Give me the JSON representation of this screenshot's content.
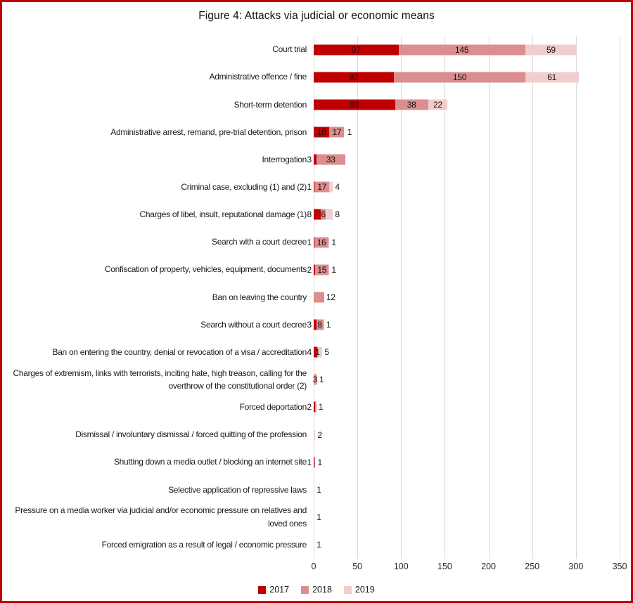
{
  "figure": {
    "title": "Figure 4: Attacks via judicial or economic means"
  },
  "chart_data": {
    "type": "bar",
    "orientation": "horizontal",
    "stacked": true,
    "title": "Figure 4: Attacks via judicial or economic means",
    "categories": [
      "Court trial",
      "Administrative offence / fine",
      "Short-term detention",
      "Administrative arrest, remand, pre-trial detention, prison",
      "Interrogation",
      "Criminal case, excluding (1) and (2)",
      "Charges of libel, insult, reputational damage (1)",
      "Search with a court decree",
      "Confiscation of property, vehicles, equipment, documents",
      "Ban on leaving the country",
      "Search without a court decree",
      "Ban on entering the country, denial or revocation of a visa / accreditation",
      "Charges of extremism, links with terrorists, inciting hate, high treason, calling for the overthrow of the constitutional order (2)",
      "Forced deportation",
      "Dismissal / involuntary dismissal / forced quitting of the profession",
      "Shutting down a media outlet / blocking an internet site",
      "Selective application of repressive laws",
      "Pressure on a media worker via judicial and/or economic pressure on relatives and loved ones",
      "Forced emigration as a result of legal / economic pressure"
    ],
    "series": [
      {
        "name": "2017",
        "color": "#C00000",
        "values": [
          97,
          92,
          93,
          18,
          3,
          1,
          8,
          1,
          2,
          0,
          3,
          4,
          0,
          2,
          0,
          1,
          0,
          0,
          0
        ]
      },
      {
        "name": "2018",
        "color": "#DC8E8E",
        "values": [
          145,
          150,
          38,
          17,
          33,
          17,
          6,
          16,
          15,
          12,
          8,
          1,
          3,
          1,
          0,
          1,
          0,
          0,
          0
        ]
      },
      {
        "name": "2019",
        "color": "#F2CDCD",
        "values": [
          59,
          61,
          22,
          1,
          0,
          4,
          8,
          1,
          1,
          0,
          1,
          5,
          1,
          0,
          2,
          0,
          1,
          1,
          1
        ]
      }
    ],
    "xlim": [
      0,
      350
    ],
    "x_ticks": [
      0,
      50,
      100,
      150,
      200,
      250,
      300,
      350
    ],
    "grid": "vertical",
    "legend_position": "bottom",
    "legend": [
      "2017",
      "2018",
      "2019"
    ]
  },
  "colors": {
    "frame_border": "#C00000",
    "gridline": "#D9D9D9",
    "text": "#1A1A1A",
    "background": "#FFFFFF"
  }
}
